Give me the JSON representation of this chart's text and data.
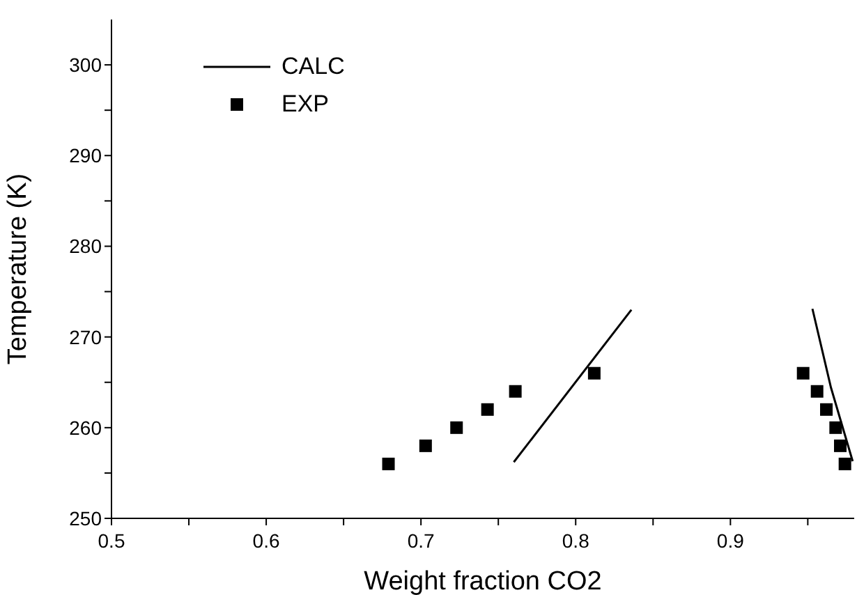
{
  "chart_data": {
    "type": "line",
    "xlabel": "Weight fraction CO2",
    "ylabel": "Temperature (K)",
    "xlim": [
      0.5,
      0.98
    ],
    "xticks": [
      0.5,
      {
        "value": 0.55,
        "label": null
      },
      0.6,
      {
        "value": 0.65,
        "label": null
      },
      0.7,
      {
        "value": 0.75,
        "label": null
      },
      0.8,
      {
        "value": 0.85,
        "label": null
      },
      0.9,
      {
        "value": 0.95,
        "label": null
      }
    ],
    "ylim": [
      250,
      305
    ],
    "yticks": [
      250,
      {
        "value": 255,
        "label": null
      },
      260,
      {
        "value": 265,
        "label": null
      },
      270,
      {
        "value": 275,
        "label": null
      },
      280,
      {
        "value": 285,
        "label": null
      },
      290,
      {
        "value": 295,
        "label": null
      },
      300
    ],
    "legend": "top left",
    "grid": false,
    "series": [
      {
        "name": "CALC",
        "color": "#000000",
        "line_style": "solid",
        "marker": "none",
        "x": [
          0.76,
          0.836
        ],
        "values": [
          256.2,
          273.0
        ]
      },
      {
        "color": "#000000",
        "line_style": "solid",
        "marker": "none",
        "x": [
          0.953,
          0.965,
          0.979
        ],
        "values": [
          273.1,
          264.4,
          256.3
        ]
      },
      {
        "name": "EXP",
        "type": "scatter",
        "color": "#000000",
        "marker": "square",
        "x": [
          0.679,
          0.703,
          0.723,
          0.743,
          0.761,
          0.812,
          0.947,
          0.956,
          0.962,
          0.968,
          0.971,
          0.974
        ],
        "values": [
          256,
          258,
          260,
          262,
          264,
          266,
          266,
          264,
          262,
          260,
          258,
          256
        ]
      }
    ]
  }
}
